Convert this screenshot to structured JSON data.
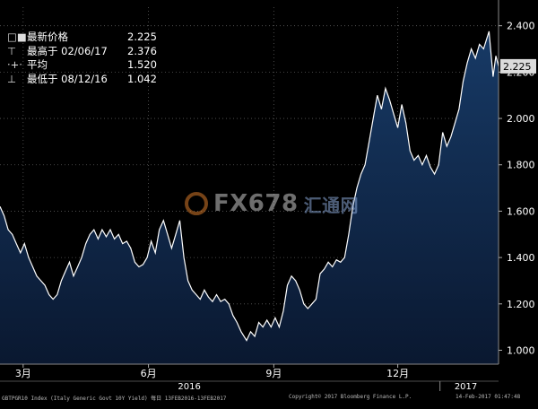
{
  "legend": {
    "last": {
      "label": "最新价格",
      "value": "2.225"
    },
    "high": {
      "label": "最高于 02/06/17",
      "value": "2.376"
    },
    "avg": {
      "label": "平均",
      "value": "1.520"
    },
    "low": {
      "label": "最低于 08/12/16",
      "value": "1.042"
    }
  },
  "current_value_label": "2.225",
  "watermark": {
    "text": "FX678",
    "suffix": "汇通网"
  },
  "footer": {
    "left": "GBTPGR10 Index (Italy Generic Govt 10Y Yield)  每日 13FEB2016-13FEB2017",
    "center": "Copyright© 2017 Bloomberg Finance L.P.",
    "right": "14-Feb-2017 01:47:48"
  },
  "colors": {
    "background": "#000000",
    "line": "#ffffff",
    "fill_top": "#173a66",
    "fill_bottom": "#0a1830",
    "tag_bg": "#dcdcdc"
  },
  "chart_data": {
    "type": "area",
    "title": "",
    "xlabel": "",
    "ylabel": "",
    "x_range": [
      "2016-02-13",
      "2017-02-13"
    ],
    "ylim": [
      0.94,
      2.48
    ],
    "y_ticks": [
      1.0,
      1.2,
      1.4,
      1.6,
      1.8,
      2.0,
      2.2,
      2.4
    ],
    "y_tick_labels": [
      "1.000",
      "1.200",
      "1.400",
      "1.600",
      "1.800",
      "2.000",
      "2.200",
      "2.400"
    ],
    "x_ticks": [
      {
        "date": "2016-03-01",
        "label": "3月"
      },
      {
        "date": "2016-06-01",
        "label": "6月"
      },
      {
        "date": "2016-09-01",
        "label": "9月"
      },
      {
        "date": "2016-12-01",
        "label": "12月"
      }
    ],
    "year_labels": [
      {
        "date": "2016-07-01",
        "label": "2016"
      },
      {
        "date": "2017-01-20",
        "label": "2017"
      }
    ],
    "year_divider": "2017-01-01",
    "grid": true,
    "grid_style": "dotted",
    "series": [
      {
        "points": [
          [
            "2016-02-13",
            1.62
          ],
          [
            "2016-02-16",
            1.58
          ],
          [
            "2016-02-19",
            1.52
          ],
          [
            "2016-02-22",
            1.5
          ],
          [
            "2016-02-25",
            1.46
          ],
          [
            "2016-02-28",
            1.42
          ],
          [
            "2016-03-02",
            1.46
          ],
          [
            "2016-03-05",
            1.4
          ],
          [
            "2016-03-08",
            1.36
          ],
          [
            "2016-03-11",
            1.32
          ],
          [
            "2016-03-14",
            1.3
          ],
          [
            "2016-03-17",
            1.28
          ],
          [
            "2016-03-20",
            1.24
          ],
          [
            "2016-03-23",
            1.22
          ],
          [
            "2016-03-26",
            1.24
          ],
          [
            "2016-03-29",
            1.3
          ],
          [
            "2016-04-01",
            1.34
          ],
          [
            "2016-04-04",
            1.38
          ],
          [
            "2016-04-07",
            1.32
          ],
          [
            "2016-04-10",
            1.36
          ],
          [
            "2016-04-13",
            1.4
          ],
          [
            "2016-04-16",
            1.46
          ],
          [
            "2016-04-19",
            1.5
          ],
          [
            "2016-04-22",
            1.52
          ],
          [
            "2016-04-25",
            1.48
          ],
          [
            "2016-04-28",
            1.52
          ],
          [
            "2016-05-01",
            1.49
          ],
          [
            "2016-05-04",
            1.52
          ],
          [
            "2016-05-07",
            1.48
          ],
          [
            "2016-05-10",
            1.5
          ],
          [
            "2016-05-13",
            1.46
          ],
          [
            "2016-05-16",
            1.47
          ],
          [
            "2016-05-19",
            1.44
          ],
          [
            "2016-05-22",
            1.38
          ],
          [
            "2016-05-25",
            1.36
          ],
          [
            "2016-05-28",
            1.37
          ],
          [
            "2016-05-31",
            1.4
          ],
          [
            "2016-06-03",
            1.47
          ],
          [
            "2016-06-06",
            1.42
          ],
          [
            "2016-06-09",
            1.52
          ],
          [
            "2016-06-12",
            1.56
          ],
          [
            "2016-06-15",
            1.5
          ],
          [
            "2016-06-18",
            1.44
          ],
          [
            "2016-06-21",
            1.5
          ],
          [
            "2016-06-24",
            1.56
          ],
          [
            "2016-06-27",
            1.4
          ],
          [
            "2016-06-30",
            1.3
          ],
          [
            "2016-07-03",
            1.26
          ],
          [
            "2016-07-06",
            1.24
          ],
          [
            "2016-07-09",
            1.22
          ],
          [
            "2016-07-12",
            1.26
          ],
          [
            "2016-07-15",
            1.23
          ],
          [
            "2016-07-18",
            1.21
          ],
          [
            "2016-07-21",
            1.24
          ],
          [
            "2016-07-24",
            1.21
          ],
          [
            "2016-07-27",
            1.22
          ],
          [
            "2016-07-30",
            1.2
          ],
          [
            "2016-08-02",
            1.15
          ],
          [
            "2016-08-05",
            1.12
          ],
          [
            "2016-08-08",
            1.08
          ],
          [
            "2016-08-12",
            1.042
          ],
          [
            "2016-08-15",
            1.08
          ],
          [
            "2016-08-18",
            1.06
          ],
          [
            "2016-08-21",
            1.12
          ],
          [
            "2016-08-24",
            1.1
          ],
          [
            "2016-08-27",
            1.13
          ],
          [
            "2016-08-30",
            1.1
          ],
          [
            "2016-09-02",
            1.14
          ],
          [
            "2016-09-05",
            1.1
          ],
          [
            "2016-09-08",
            1.17
          ],
          [
            "2016-09-11",
            1.28
          ],
          [
            "2016-09-14",
            1.32
          ],
          [
            "2016-09-17",
            1.3
          ],
          [
            "2016-09-20",
            1.26
          ],
          [
            "2016-09-23",
            1.2
          ],
          [
            "2016-09-26",
            1.18
          ],
          [
            "2016-09-29",
            1.2
          ],
          [
            "2016-10-02",
            1.22
          ],
          [
            "2016-10-05",
            1.33
          ],
          [
            "2016-10-08",
            1.35
          ],
          [
            "2016-10-11",
            1.38
          ],
          [
            "2016-10-14",
            1.36
          ],
          [
            "2016-10-17",
            1.39
          ],
          [
            "2016-10-20",
            1.38
          ],
          [
            "2016-10-23",
            1.4
          ],
          [
            "2016-10-26",
            1.5
          ],
          [
            "2016-10-29",
            1.62
          ],
          [
            "2016-11-01",
            1.7
          ],
          [
            "2016-11-04",
            1.76
          ],
          [
            "2016-11-07",
            1.8
          ],
          [
            "2016-11-10",
            1.9
          ],
          [
            "2016-11-13",
            2.0
          ],
          [
            "2016-11-16",
            2.1
          ],
          [
            "2016-11-19",
            2.04
          ],
          [
            "2016-11-22",
            2.13
          ],
          [
            "2016-11-25",
            2.08
          ],
          [
            "2016-11-28",
            2.02
          ],
          [
            "2016-12-01",
            1.96
          ],
          [
            "2016-12-04",
            2.06
          ],
          [
            "2016-12-07",
            1.98
          ],
          [
            "2016-12-10",
            1.86
          ],
          [
            "2016-12-13",
            1.82
          ],
          [
            "2016-12-16",
            1.84
          ],
          [
            "2016-12-19",
            1.8
          ],
          [
            "2016-12-22",
            1.84
          ],
          [
            "2016-12-25",
            1.79
          ],
          [
            "2016-12-28",
            1.76
          ],
          [
            "2016-12-31",
            1.8
          ],
          [
            "2017-01-03",
            1.94
          ],
          [
            "2017-01-06",
            1.88
          ],
          [
            "2017-01-09",
            1.92
          ],
          [
            "2017-01-12",
            1.98
          ],
          [
            "2017-01-15",
            2.04
          ],
          [
            "2017-01-18",
            2.16
          ],
          [
            "2017-01-21",
            2.24
          ],
          [
            "2017-01-24",
            2.3
          ],
          [
            "2017-01-27",
            2.26
          ],
          [
            "2017-01-30",
            2.32
          ],
          [
            "2017-02-02",
            2.3
          ],
          [
            "2017-02-06",
            2.376
          ],
          [
            "2017-02-09",
            2.18
          ],
          [
            "2017-02-11",
            2.27
          ],
          [
            "2017-02-13",
            2.225
          ]
        ]
      }
    ]
  }
}
